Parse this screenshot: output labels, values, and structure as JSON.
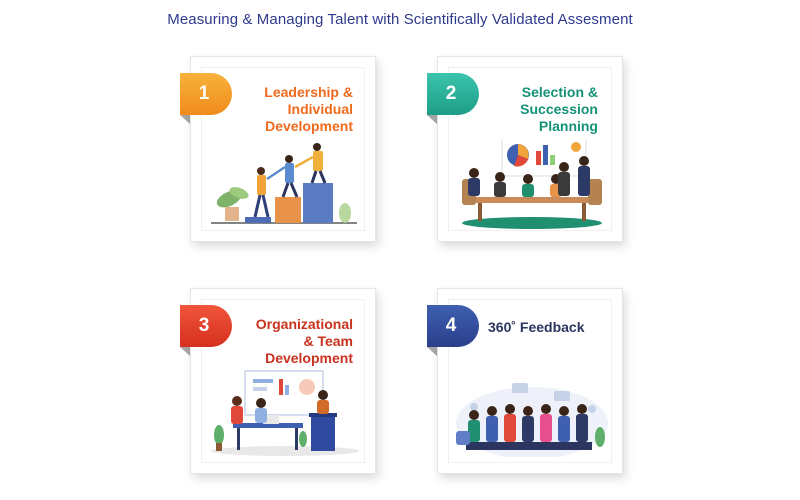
{
  "page": {
    "title": "Measuring & Managing Talent with Scientifically Validated Assesment"
  },
  "cards": [
    {
      "number": "1",
      "title_lines": [
        "Leadership &",
        "Individual",
        "Development"
      ],
      "illustration": "leadership-illustration",
      "color": "#ef6a1c"
    },
    {
      "number": "2",
      "title_lines": [
        "Selection &",
        "Succession",
        "Planning"
      ],
      "illustration": "meeting-illustration",
      "color": "#159277"
    },
    {
      "number": "3",
      "title_lines": [
        "Organizational",
        "& Team",
        "Development"
      ],
      "illustration": "team-illustration",
      "color": "#c8321e"
    },
    {
      "number": "4",
      "title_lines": [
        "360˚ Feedback"
      ],
      "illustration": "feedback-illustration",
      "color": "#2a3560"
    }
  ]
}
